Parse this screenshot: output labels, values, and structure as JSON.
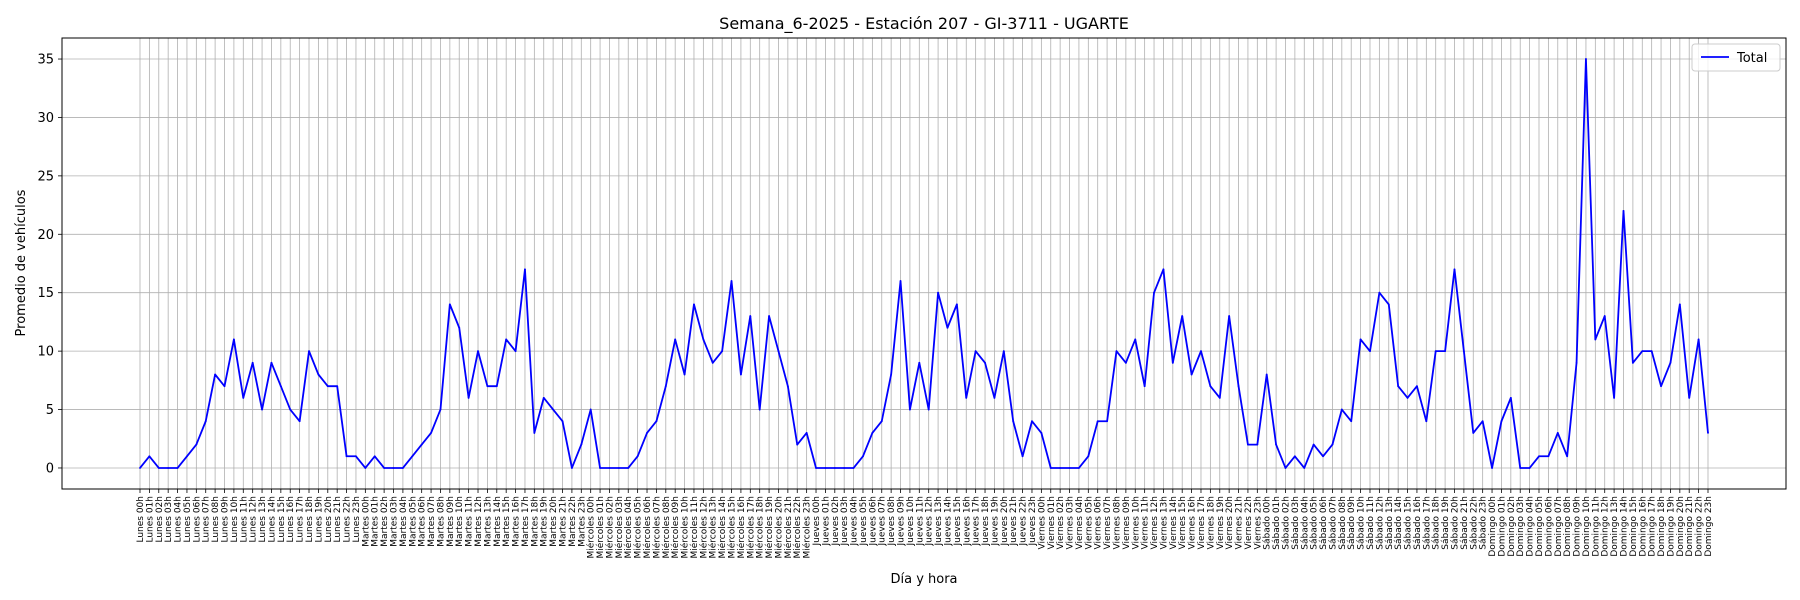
{
  "chart_data": {
    "type": "line",
    "title": "Semana_6-2025 - Estación 207 - GI-3711  - UGARTE",
    "xlabel": "Día y hora",
    "ylabel": "Promedio de vehículos",
    "ylim": [
      -1.8,
      36.8
    ],
    "yticks": [
      0,
      5,
      10,
      15,
      20,
      25,
      30,
      35
    ],
    "grid": true,
    "legend_position": "top-right",
    "days": [
      "Lunes",
      "Martes",
      "Miércoles",
      "Jueves",
      "Viernes",
      "Sábado",
      "Domingo"
    ],
    "x": [
      "Lunes 00h",
      "Lunes 01h",
      "Lunes 02h",
      "Lunes 03h",
      "Lunes 04h",
      "Lunes 05h",
      "Lunes 06h",
      "Lunes 07h",
      "Lunes 08h",
      "Lunes 09h",
      "Lunes 10h",
      "Lunes 11h",
      "Lunes 12h",
      "Lunes 13h",
      "Lunes 14h",
      "Lunes 15h",
      "Lunes 16h",
      "Lunes 17h",
      "Lunes 18h",
      "Lunes 19h",
      "Lunes 20h",
      "Lunes 21h",
      "Lunes 22h",
      "Lunes 23h",
      "Martes 00h",
      "Martes 01h",
      "Martes 02h",
      "Martes 03h",
      "Martes 04h",
      "Martes 05h",
      "Martes 06h",
      "Martes 07h",
      "Martes 08h",
      "Martes 09h",
      "Martes 10h",
      "Martes 11h",
      "Martes 12h",
      "Martes 13h",
      "Martes 14h",
      "Martes 15h",
      "Martes 16h",
      "Martes 17h",
      "Martes 18h",
      "Martes 19h",
      "Martes 20h",
      "Martes 21h",
      "Martes 22h",
      "Martes 23h",
      "Miércoles 00h",
      "Miércoles 01h",
      "Miércoles 02h",
      "Miércoles 03h",
      "Miércoles 04h",
      "Miércoles 05h",
      "Miércoles 06h",
      "Miércoles 07h",
      "Miércoles 08h",
      "Miércoles 09h",
      "Miércoles 10h",
      "Miércoles 11h",
      "Miércoles 12h",
      "Miércoles 13h",
      "Miércoles 14h",
      "Miércoles 15h",
      "Miércoles 16h",
      "Miércoles 17h",
      "Miércoles 18h",
      "Miércoles 19h",
      "Miércoles 20h",
      "Miércoles 21h",
      "Miércoles 22h",
      "Miércoles 23h",
      "Jueves 00h",
      "Jueves 01h",
      "Jueves 02h",
      "Jueves 03h",
      "Jueves 04h",
      "Jueves 05h",
      "Jueves 06h",
      "Jueves 07h",
      "Jueves 08h",
      "Jueves 09h",
      "Jueves 10h",
      "Jueves 11h",
      "Jueves 12h",
      "Jueves 13h",
      "Jueves 14h",
      "Jueves 15h",
      "Jueves 16h",
      "Jueves 17h",
      "Jueves 18h",
      "Jueves 19h",
      "Jueves 20h",
      "Jueves 21h",
      "Jueves 22h",
      "Jueves 23h",
      "Viernes 00h",
      "Viernes 01h",
      "Viernes 02h",
      "Viernes 03h",
      "Viernes 04h",
      "Viernes 05h",
      "Viernes 06h",
      "Viernes 07h",
      "Viernes 08h",
      "Viernes 09h",
      "Viernes 10h",
      "Viernes 11h",
      "Viernes 12h",
      "Viernes 13h",
      "Viernes 14h",
      "Viernes 15h",
      "Viernes 16h",
      "Viernes 17h",
      "Viernes 18h",
      "Viernes 19h",
      "Viernes 20h",
      "Viernes 21h",
      "Viernes 22h",
      "Viernes 23h",
      "Sábado 00h",
      "Sábado 01h",
      "Sábado 02h",
      "Sábado 03h",
      "Sábado 04h",
      "Sábado 05h",
      "Sábado 06h",
      "Sábado 07h",
      "Sábado 08h",
      "Sábado 09h",
      "Sábado 10h",
      "Sábado 11h",
      "Sábado 12h",
      "Sábado 13h",
      "Sábado 14h",
      "Sábado 15h",
      "Sábado 16h",
      "Sábado 17h",
      "Sábado 18h",
      "Sábado 19h",
      "Sábado 20h",
      "Sábado 21h",
      "Sábado 22h",
      "Sábado 23h",
      "Domingo 00h",
      "Domingo 01h",
      "Domingo 02h",
      "Domingo 03h",
      "Domingo 04h",
      "Domingo 05h",
      "Domingo 06h",
      "Domingo 07h",
      "Domingo 08h",
      "Domingo 09h",
      "Domingo 10h",
      "Domingo 11h",
      "Domingo 12h",
      "Domingo 13h",
      "Domingo 14h",
      "Domingo 15h",
      "Domingo 16h",
      "Domingo 17h",
      "Domingo 18h",
      "Domingo 19h",
      "Domingo 20h",
      "Domingo 21h",
      "Domingo 22h",
      "Domingo 23h"
    ],
    "series": [
      {
        "name": "Total",
        "color": "#0000ff",
        "values": [
          0,
          1,
          0,
          0,
          0,
          1,
          2,
          4,
          8,
          7,
          11,
          6,
          9,
          5,
          9,
          7,
          5,
          4,
          10,
          8,
          7,
          7,
          1,
          1,
          0,
          1,
          0,
          0,
          0,
          1,
          2,
          3,
          5,
          14,
          12,
          6,
          10,
          7,
          7,
          11,
          10,
          17,
          3,
          6,
          5,
          4,
          0,
          2,
          5,
          0,
          0,
          0,
          0,
          1,
          3,
          4,
          7,
          11,
          8,
          14,
          11,
          9,
          10,
          16,
          8,
          13,
          5,
          13,
          10,
          7,
          2,
          3,
          0,
          0,
          0,
          0,
          0,
          1,
          3,
          4,
          8,
          16,
          5,
          9,
          5,
          15,
          12,
          14,
          6,
          10,
          9,
          6,
          10,
          4,
          1,
          4,
          3,
          0,
          0,
          0,
          0,
          1,
          4,
          4,
          10,
          9,
          11,
          7,
          15,
          17,
          9,
          13,
          8,
          10,
          7,
          6,
          13,
          7,
          2,
          2,
          8,
          2,
          0,
          1,
          0,
          2,
          1,
          2,
          5,
          4,
          11,
          10,
          15,
          14,
          7,
          6,
          7,
          4,
          10,
          10,
          17,
          10,
          3,
          4,
          0,
          4,
          6,
          0,
          0,
          1,
          1,
          3,
          1,
          9,
          35,
          11,
          13,
          6,
          22,
          9,
          10,
          10,
          7,
          9,
          14,
          6,
          11,
          3
        ]
      }
    ]
  }
}
